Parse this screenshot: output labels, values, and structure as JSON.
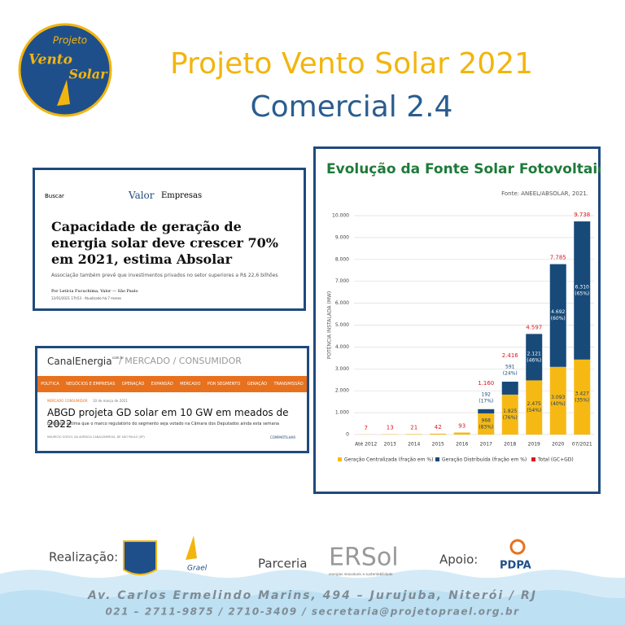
{
  "header": {
    "title": "Projeto Vento Solar 2021",
    "subtitle": "Comercial 2.4",
    "logo": {
      "top": "Projeto",
      "middle": "Vento",
      "bottom": "Solar"
    }
  },
  "article1": {
    "search": "Buscar",
    "brand": "Valor",
    "section": "Empresas",
    "headline": "Capacidade de geração de energia solar deve crescer 70% em 2021, estima Absolar",
    "summary": "Associação também prevê que investimentos privados no setor superiores a R$ 22,6 bilhões",
    "byline": "Por Letícia Fucuchima, Valor — São Paulo",
    "date": "12/01/2021 17h53 · Atualizado há 7 meses"
  },
  "article2": {
    "brand": "CanalEnergia",
    "domain": "com.br",
    "path": "/ MERCADO / CONSUMIDOR",
    "nav": [
      "POLÍTICA",
      "NEGÓCIOS E EMPRESAS",
      "OPERAÇÃO",
      "EXPANSÃO",
      "MERCADO",
      "POR SEGMENTO",
      "GERAÇÃO",
      "TRANSMISSÃO"
    ],
    "tags": "MERCADO CONSUMIDOR",
    "date": "10 de março de 2021",
    "headline": "ABGD projeta GD solar em 10 GW em meados de 2022",
    "summary": "Entidade estima que o marco regulatório do segmento seja votado na Câmara dos Deputados ainda esta semana",
    "credit": "MAURÍCIO GODOI, DA AGÊNCIA CANALENERGIA, DE SÃO PAULO (SP)",
    "share": "COMPARTILHAR"
  },
  "chart_data": {
    "type": "stacked_bar",
    "title": "Evolução da Fonte Solar Fotovoltaica no Brasil",
    "source": "Fonte: ANEEL/ABSOLAR, 2021.",
    "y_label": "POTÊNCIA INSTALADA (MW)",
    "categories": [
      "Até 2012",
      "2013",
      "2014",
      "2015",
      "2016",
      "2017",
      "2018",
      "2019",
      "2020",
      "07/2021"
    ],
    "series": [
      {
        "name": "Geração Centralizada (fração em %)",
        "color": "#f6b914",
        "values": [
          null,
          null,
          null,
          null,
          null,
          968,
          1825,
          2475,
          3093,
          3427
        ],
        "value_labels": [
          null,
          null,
          null,
          null,
          null,
          "968",
          "1.825",
          "2.475",
          "3.093",
          "3.427"
        ],
        "shares": [
          null,
          null,
          null,
          null,
          null,
          "(83%)",
          "(76%)",
          "(54%)",
          "(40%)",
          "(35%)"
        ]
      },
      {
        "name": "Geração Distribuída (fração em %)",
        "color": "#174a78",
        "values": [
          null,
          null,
          null,
          null,
          null,
          192,
          591,
          2121,
          4692,
          6310
        ],
        "value_labels": [
          null,
          null,
          null,
          null,
          null,
          "192",
          "591",
          "2.121",
          "4.692",
          "6.310"
        ],
        "shares": [
          null,
          null,
          null,
          null,
          null,
          "(17%)",
          "(24%)",
          "(46%)",
          "(60%)",
          "(65%)"
        ]
      }
    ],
    "total": {
      "name": "Total (GC+GD)",
      "color": "#d71920",
      "values": [
        7,
        13,
        21,
        42,
        93,
        1160,
        2416,
        4597,
        7785,
        9738
      ],
      "value_labels": [
        "7",
        "13",
        "21",
        "42",
        "93",
        "1.160",
        "2.416",
        "4.597",
        "7.785",
        "9.738"
      ]
    },
    "ylim": [
      0,
      10000
    ],
    "yticks": [
      0,
      {
        "value": 1000,
        "label": "1.000"
      },
      {
        "value": 2000,
        "label": "2.000"
      },
      {
        "value": 3000,
        "label": "3.000"
      },
      {
        "value": 4000,
        "label": "4.000"
      },
      {
        "value": 5000,
        "label": "5.000"
      },
      {
        "value": 6000,
        "label": "6.000"
      },
      {
        "value": 7000,
        "label": "7.000"
      },
      {
        "value": 8000,
        "label": "8.000"
      },
      {
        "value": 9000,
        "label": "9.000"
      },
      {
        "value": 10000,
        "label": "10.000"
      }
    ],
    "grid": true
  },
  "footer": {
    "realizacao": "Realização:",
    "parceria": "Parceria",
    "apoio": "Apoio:",
    "grael": "Grael",
    "ersol": "ERSol",
    "ersol_tag": "energias renováveis e sustentabilidade",
    "pdpa": "PDPA",
    "address": "Av. Carlos Ermelindo Marins, 494 – Jurujuba, Niterói / RJ",
    "contact": "021 – 2711-9875 / 2710-3409 / secretaria@projetoprael.org.br"
  }
}
